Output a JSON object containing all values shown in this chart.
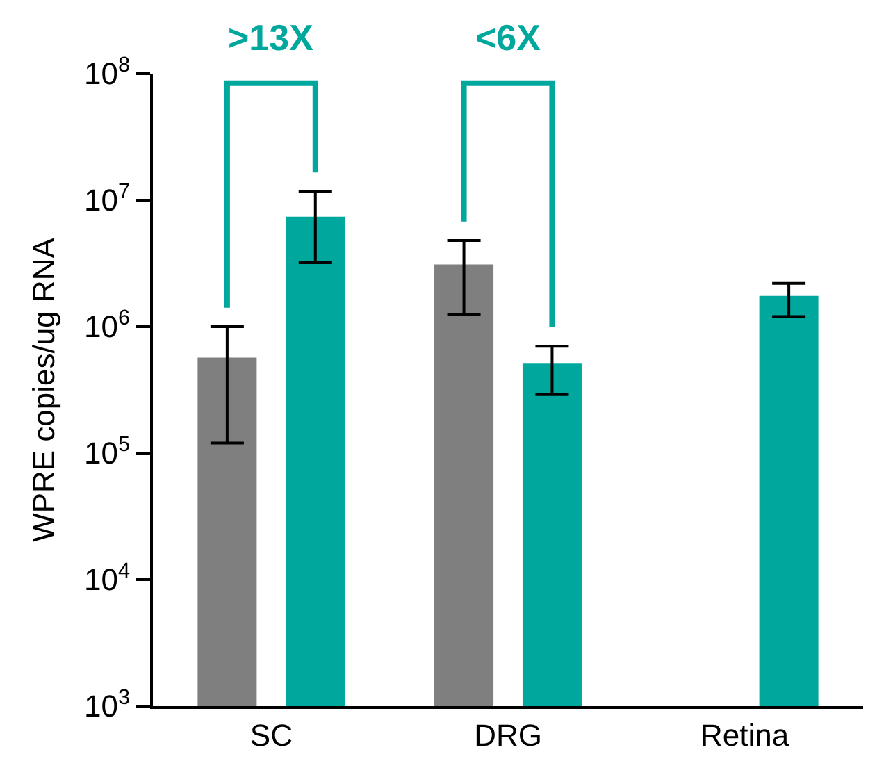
{
  "chart_data": {
    "type": "bar",
    "ylabel": "WPRE copies/ug RNA",
    "categories": [
      "SC",
      "DRG",
      "Retina"
    ],
    "series": [
      {
        "color": "#7f7f7f",
        "values": [
          570000,
          3100000,
          null
        ],
        "errors": [
          [
            120000,
            1000000
          ],
          [
            1250000,
            4800000
          ],
          null
        ]
      },
      {
        "color": "#00a79d",
        "values": [
          7400000,
          510000,
          1750000
        ],
        "errors": [
          [
            3200000,
            11700000
          ],
          [
            290000,
            700000
          ],
          [
            1200000,
            2200000
          ]
        ]
      }
    ],
    "log": true,
    "ylim": [
      1000,
      100000000
    ],
    "yticks": [
      {
        "value": 1000,
        "label": "10$^{3}$"
      },
      {
        "value": 10000,
        "label": "10$^{4}$"
      },
      {
        "value": 100000,
        "label": "10$^{5}$"
      },
      {
        "value": 1000000,
        "label": "10$^{6}$"
      },
      {
        "value": 10000000,
        "label": "10$^{7}$"
      },
      {
        "value": 100000000,
        "label": "10$^{8}$"
      }
    ],
    "annotations": [
      ">13X",
      "<6X"
    ]
  }
}
